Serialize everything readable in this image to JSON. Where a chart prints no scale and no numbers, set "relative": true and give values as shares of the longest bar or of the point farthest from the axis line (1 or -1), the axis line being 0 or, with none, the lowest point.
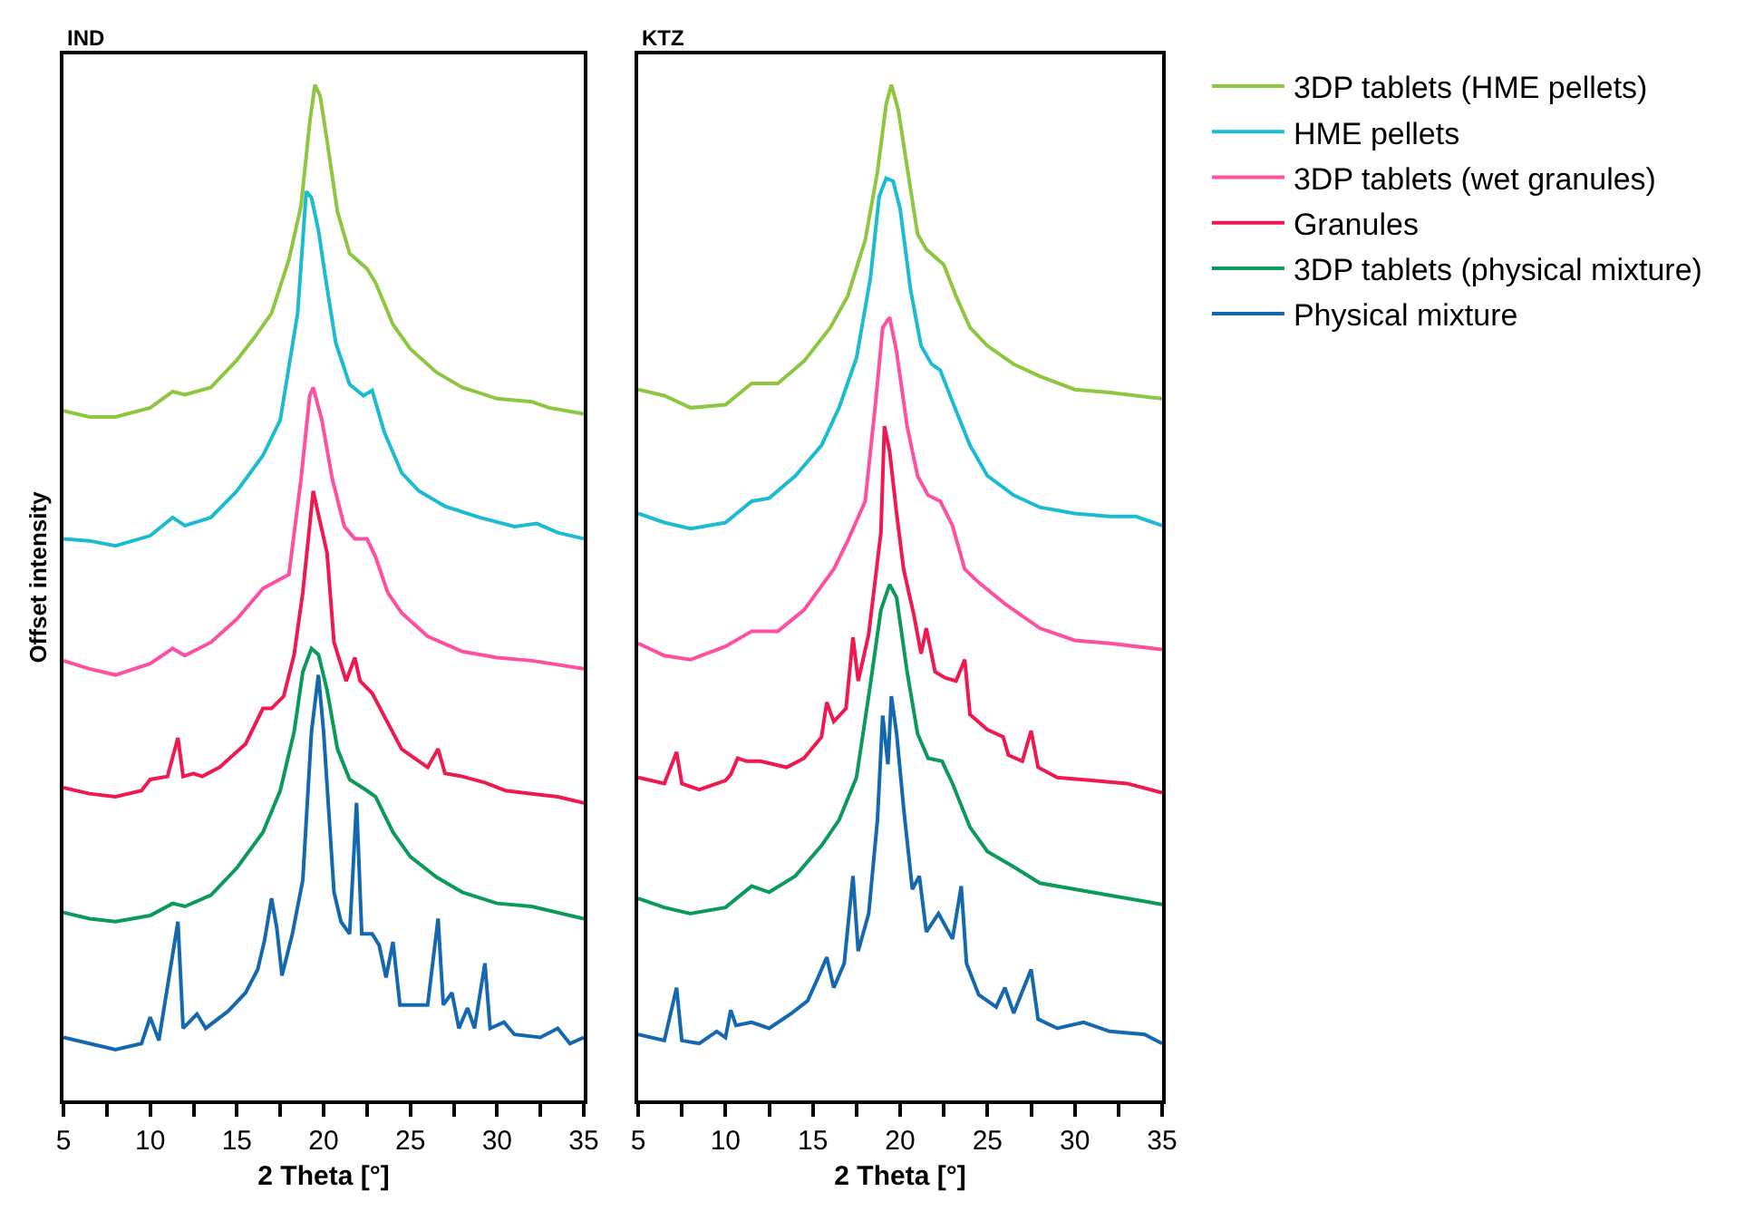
{
  "chart_data": [
    {
      "type": "line",
      "title": "IND",
      "xlabel": "2 Theta [°]",
      "ylabel": "Offset intensity",
      "relative": true,
      "legend": "right",
      "xlim": [
        5,
        35
      ],
      "xticks": [
        5,
        {
          "value": 7.5,
          "label": null
        },
        10,
        {
          "value": 12.5,
          "label": null
        },
        15,
        {
          "value": 17.5,
          "label": null
        },
        20,
        {
          "value": 22.5,
          "label": null
        },
        25,
        {
          "value": 27.5,
          "label": null
        },
        30,
        {
          "value": 32.5,
          "label": null
        },
        35
      ],
      "series": [
        {
          "name": "3DP tablets (HME pellets)",
          "color": "#8dc63f",
          "x": [
            5,
            6.5,
            8,
            10,
            11.3,
            12,
            13.5,
            15,
            16,
            17,
            18,
            18.7,
            19.2,
            19.5,
            19.8,
            20.2,
            20.8,
            21.5,
            22.5,
            23,
            24,
            25,
            26.5,
            28,
            30,
            32,
            33,
            35
          ],
          "values": [
            0.679,
            0.673,
            0.673,
            0.682,
            0.698,
            0.695,
            0.702,
            0.729,
            0.751,
            0.775,
            0.828,
            0.881,
            0.963,
            1.0,
            0.989,
            0.945,
            0.875,
            0.834,
            0.819,
            0.805,
            0.764,
            0.74,
            0.717,
            0.702,
            0.691,
            0.688,
            0.682,
            0.676
          ]
        },
        {
          "name": "HME pellets",
          "color": "#1bbcd1",
          "x": [
            5,
            6.5,
            8,
            10,
            11.3,
            12,
            13.5,
            15,
            16.5,
            17.5,
            18.5,
            19,
            19.3,
            19.7,
            20.1,
            20.7,
            21.5,
            22.3,
            22.8,
            23.5,
            24.5,
            25.5,
            27,
            29,
            31,
            32.3,
            33.5,
            35
          ],
          "values": [
            0.553,
            0.551,
            0.546,
            0.556,
            0.574,
            0.566,
            0.574,
            0.6,
            0.635,
            0.67,
            0.775,
            0.895,
            0.889,
            0.857,
            0.811,
            0.746,
            0.705,
            0.694,
            0.699,
            0.658,
            0.618,
            0.6,
            0.585,
            0.574,
            0.565,
            0.568,
            0.559,
            0.553
          ]
        },
        {
          "name": "3DP tablets (wet granules)",
          "color": "#ff4fa0",
          "x": [
            5,
            6.5,
            8,
            10,
            11.3,
            12,
            13.5,
            15,
            16.5,
            18,
            18.7,
            19.2,
            19.4,
            19.9,
            20.5,
            21.2,
            21.8,
            22.5,
            23,
            23.7,
            24.5,
            26,
            28,
            30,
            32,
            35
          ],
          "values": [
            0.433,
            0.425,
            0.419,
            0.43,
            0.445,
            0.438,
            0.451,
            0.474,
            0.504,
            0.518,
            0.612,
            0.694,
            0.702,
            0.67,
            0.612,
            0.565,
            0.553,
            0.553,
            0.535,
            0.5,
            0.48,
            0.457,
            0.442,
            0.436,
            0.433,
            0.425
          ]
        },
        {
          "name": "Granules",
          "color": "#f0194f",
          "x": [
            5,
            6.5,
            8,
            9.5,
            10,
            11,
            11.6,
            11.9,
            12.5,
            13,
            14,
            15.5,
            16.5,
            17,
            17.7,
            18.3,
            18.8,
            19.4,
            19.7,
            20.2,
            20.6,
            21.3,
            21.8,
            22.1,
            22.8,
            23.6,
            24.5,
            26,
            26.6,
            27,
            28,
            29.3,
            30.5,
            32,
            33.5,
            35
          ],
          "values": [
            0.308,
            0.302,
            0.299,
            0.305,
            0.316,
            0.319,
            0.357,
            0.319,
            0.322,
            0.319,
            0.328,
            0.351,
            0.386,
            0.386,
            0.398,
            0.439,
            0.5,
            0.6,
            0.577,
            0.539,
            0.451,
            0.413,
            0.436,
            0.413,
            0.401,
            0.375,
            0.346,
            0.328,
            0.346,
            0.322,
            0.319,
            0.313,
            0.305,
            0.302,
            0.299,
            0.293
          ]
        },
        {
          "name": "3DP tablets (physical mixture)",
          "color": "#0a9a5a",
          "x": [
            5,
            6.5,
            8,
            10,
            11.3,
            12,
            13.5,
            15,
            16.5,
            17.5,
            18.3,
            18.8,
            19.3,
            19.7,
            20.2,
            20.8,
            21.5,
            22.5,
            23,
            24,
            25,
            26.5,
            28,
            30,
            32,
            35
          ],
          "values": [
            0.185,
            0.179,
            0.176,
            0.182,
            0.194,
            0.191,
            0.202,
            0.229,
            0.264,
            0.305,
            0.363,
            0.422,
            0.445,
            0.439,
            0.404,
            0.346,
            0.316,
            0.305,
            0.299,
            0.264,
            0.24,
            0.22,
            0.205,
            0.194,
            0.191,
            0.179
          ]
        },
        {
          "name": "Physical mixture",
          "color": "#1468b0",
          "x": [
            5,
            6.5,
            8,
            9.5,
            10,
            10.5,
            11.6,
            11.9,
            12.7,
            13.2,
            14.5,
            15.5,
            16.2,
            16.6,
            17,
            17.3,
            17.6,
            18.2,
            18.8,
            19.3,
            19.7,
            20,
            20.6,
            21,
            21.5,
            21.9,
            22.2,
            22.8,
            23.2,
            23.6,
            24,
            24.4,
            25.5,
            26,
            26.6,
            26.9,
            27.4,
            27.8,
            28.3,
            28.7,
            29.3,
            29.6,
            30.4,
            31,
            32.5,
            33.5,
            34.2,
            35
          ],
          "values": [
            0.062,
            0.056,
            0.05,
            0.056,
            0.082,
            0.059,
            0.176,
            0.071,
            0.085,
            0.071,
            0.088,
            0.106,
            0.129,
            0.158,
            0.199,
            0.17,
            0.123,
            0.164,
            0.217,
            0.363,
            0.419,
            0.363,
            0.205,
            0.176,
            0.164,
            0.293,
            0.164,
            0.164,
            0.153,
            0.121,
            0.156,
            0.094,
            0.094,
            0.094,
            0.179,
            0.094,
            0.106,
            0.071,
            0.091,
            0.071,
            0.135,
            0.071,
            0.077,
            0.065,
            0.062,
            0.071,
            0.056,
            0.062
          ]
        }
      ]
    },
    {
      "type": "line",
      "title": "KTZ",
      "xlabel": "2 Theta [°]",
      "relative": true,
      "xlim": [
        5,
        35
      ],
      "xticks": [
        5,
        {
          "value": 7.5,
          "label": null
        },
        10,
        {
          "value": 12.5,
          "label": null
        },
        15,
        {
          "value": 17.5,
          "label": null
        },
        20,
        {
          "value": 22.5,
          "label": null
        },
        25,
        {
          "value": 27.5,
          "label": null
        },
        30,
        {
          "value": 32.5,
          "label": null
        },
        35
      ],
      "series": [
        {
          "color": "#8dc63f",
          "x": [
            5,
            6.5,
            8,
            10,
            11.5,
            13,
            14.5,
            16,
            17,
            18,
            18.7,
            19.2,
            19.5,
            19.9,
            20.5,
            21,
            21.5,
            22.5,
            23.2,
            24,
            25,
            26.5,
            28,
            30,
            32,
            35
          ],
          "values": [
            0.7,
            0.694,
            0.682,
            0.685,
            0.706,
            0.706,
            0.728,
            0.761,
            0.792,
            0.847,
            0.914,
            0.981,
            1.0,
            0.975,
            0.908,
            0.853,
            0.838,
            0.823,
            0.792,
            0.761,
            0.743,
            0.725,
            0.713,
            0.7,
            0.697,
            0.691
          ]
        },
        {
          "color": "#1bbcd1",
          "x": [
            5,
            6.5,
            8,
            10,
            11.5,
            12.5,
            14,
            15.5,
            16.5,
            17.5,
            18.3,
            18.8,
            19.2,
            19.6,
            20,
            20.6,
            21.2,
            21.8,
            22.3,
            23,
            24,
            25,
            26.5,
            28,
            30,
            32,
            33.5,
            35
          ],
          "values": [
            0.578,
            0.569,
            0.563,
            0.569,
            0.59,
            0.593,
            0.615,
            0.645,
            0.682,
            0.731,
            0.81,
            0.89,
            0.908,
            0.905,
            0.878,
            0.798,
            0.743,
            0.725,
            0.719,
            0.688,
            0.645,
            0.615,
            0.596,
            0.584,
            0.578,
            0.575,
            0.575,
            0.566
          ]
        },
        {
          "color": "#ff4fa0",
          "x": [
            5,
            6.5,
            8,
            10,
            11.5,
            13,
            14.5,
            16.2,
            17,
            18,
            18.6,
            19,
            19.4,
            19.8,
            20.4,
            21,
            21.6,
            22.3,
            23,
            23.7,
            24.5,
            26,
            28,
            30,
            32,
            35
          ],
          "values": [
            0.45,
            0.438,
            0.434,
            0.447,
            0.462,
            0.462,
            0.483,
            0.523,
            0.551,
            0.59,
            0.688,
            0.761,
            0.771,
            0.737,
            0.664,
            0.615,
            0.596,
            0.59,
            0.566,
            0.523,
            0.51,
            0.489,
            0.465,
            0.453,
            0.45,
            0.444
          ]
        },
        {
          "color": "#f0194f",
          "x": [
            5,
            6.5,
            7.2,
            7.5,
            8.5,
            10,
            10.3,
            10.7,
            11.2,
            12,
            13.5,
            14.5,
            15.5,
            15.8,
            16.2,
            16.9,
            17.3,
            17.6,
            18.2,
            18.9,
            19.1,
            19.4,
            19.8,
            20.2,
            20.8,
            21.2,
            21.5,
            22,
            22.6,
            23.2,
            23.7,
            24,
            25,
            25.9,
            26.2,
            27,
            27.5,
            27.9,
            29,
            31,
            33,
            35
          ],
          "values": [
            0.318,
            0.312,
            0.343,
            0.312,
            0.306,
            0.315,
            0.321,
            0.337,
            0.334,
            0.334,
            0.328,
            0.337,
            0.358,
            0.392,
            0.373,
            0.386,
            0.456,
            0.413,
            0.459,
            0.559,
            0.664,
            0.639,
            0.578,
            0.523,
            0.477,
            0.44,
            0.465,
            0.422,
            0.416,
            0.413,
            0.434,
            0.38,
            0.365,
            0.358,
            0.34,
            0.334,
            0.364,
            0.328,
            0.318,
            0.315,
            0.312,
            0.303
          ]
        },
        {
          "color": "#0a9a5a",
          "x": [
            5,
            6.5,
            8,
            10,
            11.5,
            12.5,
            14,
            15.5,
            16.5,
            17.5,
            18.3,
            18.9,
            19.4,
            19.8,
            20.4,
            21,
            21.6,
            22.4,
            23,
            24,
            25,
            26.5,
            28,
            30,
            32,
            35
          ],
          "values": [
            0.199,
            0.19,
            0.184,
            0.19,
            0.211,
            0.205,
            0.221,
            0.251,
            0.276,
            0.318,
            0.41,
            0.483,
            0.508,
            0.495,
            0.422,
            0.361,
            0.337,
            0.334,
            0.312,
            0.269,
            0.245,
            0.23,
            0.214,
            0.208,
            0.202,
            0.193
          ]
        },
        {
          "color": "#1468b0",
          "x": [
            5,
            6.5,
            7.2,
            7.5,
            8.5,
            9.5,
            10,
            10.3,
            10.6,
            11.5,
            12.5,
            13.8,
            14.7,
            15.2,
            15.8,
            16.2,
            16.8,
            17.3,
            17.6,
            18.2,
            18.7,
            19,
            19.3,
            19.5,
            19.8,
            20.2,
            20.7,
            21.1,
            21.5,
            22.2,
            23,
            23.5,
            23.8,
            24.5,
            25.5,
            26,
            26.5,
            27.5,
            27.9,
            29,
            30.5,
            32,
            34,
            35
          ],
          "values": [
            0.065,
            0.059,
            0.111,
            0.059,
            0.056,
            0.068,
            0.062,
            0.089,
            0.074,
            0.077,
            0.071,
            0.086,
            0.098,
            0.117,
            0.141,
            0.111,
            0.135,
            0.221,
            0.147,
            0.184,
            0.276,
            0.379,
            0.331,
            0.398,
            0.361,
            0.288,
            0.208,
            0.221,
            0.166,
            0.184,
            0.159,
            0.211,
            0.135,
            0.104,
            0.092,
            0.111,
            0.086,
            0.129,
            0.08,
            0.071,
            0.077,
            0.068,
            0.065,
            0.056
          ]
        }
      ]
    }
  ]
}
